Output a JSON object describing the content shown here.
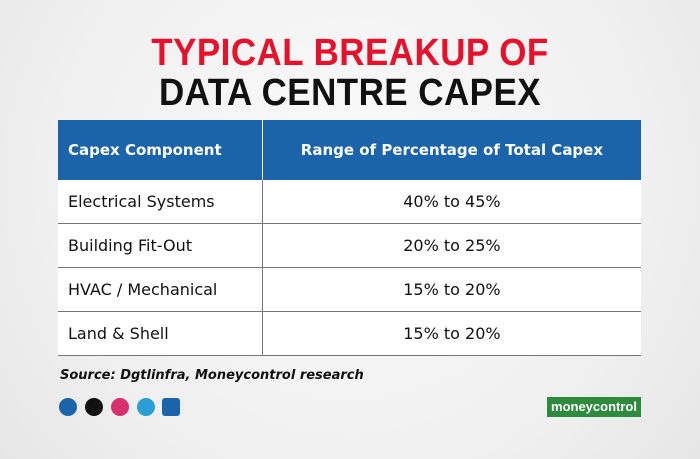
{
  "header": {
    "title_line1": "TYPICAL BREAKUP OF",
    "title_line2": "DATA CENTRE CAPEX"
  },
  "table": {
    "columns": [
      "Capex Component",
      "Range of Percentage of Total Capex"
    ],
    "rows": [
      [
        "Electrical Systems",
        "40% to 45%"
      ],
      [
        "Building Fit-Out",
        "20% to 25%"
      ],
      [
        "HVAC / Mechanical",
        "15% to 20%"
      ],
      [
        "Land & Shell",
        "15% to 20%"
      ]
    ]
  },
  "footer": {
    "source": "Source: Dgtlinfra, Moneycontrol research",
    "brand": "moneycontrol"
  }
}
